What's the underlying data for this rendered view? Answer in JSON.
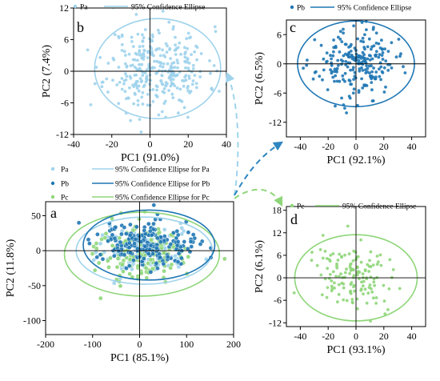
{
  "colors": {
    "pa": "#9fd3ec",
    "pb": "#1f77b4",
    "pc": "#8fd67a",
    "arrow": "#2e86c1",
    "arrow_c": "#8fd67a"
  },
  "chart_data": [
    {
      "panel": "b",
      "type": "scatter",
      "xlabel": "PC1 (91.0%)",
      "ylabel": "PC2 (7.4%)",
      "xlim": [
        -40,
        40
      ],
      "ylim": [
        -12,
        12
      ],
      "xticks": [
        -40,
        -20,
        0,
        20,
        40
      ],
      "yticks": [
        -12,
        -6,
        0,
        6,
        12
      ],
      "legend": [
        {
          "label": "Pa",
          "type": "marker"
        },
        {
          "label": "95% Confidence Ellipse",
          "type": "line"
        }
      ],
      "series": [
        {
          "name": "Pa",
          "color": "pa",
          "n": 330,
          "sx": 13,
          "sy": 4,
          "seed": 11
        }
      ],
      "ellipse": {
        "cx": 4,
        "cy": 0.5,
        "rx": 33,
        "ry": 9.5,
        "color": "pa"
      }
    },
    {
      "panel": "c",
      "type": "scatter",
      "xlabel": "PC1 (92.1%)",
      "ylabel": "PC2 (6.5%)",
      "xlim": [
        -50,
        50
      ],
      "ylim": [
        -15,
        9
      ],
      "xticks": [
        -40,
        -20,
        0,
        20,
        40
      ],
      "yticks": [
        -12,
        -6,
        0,
        6
      ],
      "legend": [
        {
          "label": "Pb",
          "type": "marker"
        },
        {
          "label": "95% Confidence Ellipse",
          "type": "line"
        }
      ],
      "series": [
        {
          "name": "Pb",
          "color": "pb",
          "n": 230,
          "sx": 14,
          "sy": 3.4,
          "seed": 23
        }
      ],
      "ellipse": {
        "cx": 0,
        "cy": 0,
        "rx": 42,
        "ry": 8.8,
        "color": "pb"
      }
    },
    {
      "panel": "a",
      "type": "scatter",
      "xlabel": "PC1 (85.1%)",
      "ylabel": "PC2 (11.8%)",
      "xlim": [
        -200,
        200
      ],
      "ylim": [
        -120,
        70
      ],
      "xticks": [
        -200,
        -100,
        0,
        100,
        200
      ],
      "yticks": [
        -100,
        -50,
        0,
        50
      ],
      "legend": [
        {
          "label": "Pa",
          "type": "marker",
          "color": "pa"
        },
        {
          "label": "95% Confidence Ellipse for Pa",
          "type": "line",
          "color": "pa"
        },
        {
          "label": "Pb",
          "type": "marker",
          "color": "pb"
        },
        {
          "label": "95% Confidence Ellipse for Pb",
          "type": "line",
          "color": "pb"
        },
        {
          "label": "Pc",
          "type": "marker",
          "color": "pc"
        },
        {
          "label": "95% Confidence Ellipse for Pc",
          "type": "line",
          "color": "pc"
        }
      ],
      "series": [
        {
          "name": "Pa",
          "color": "pa",
          "n": 180,
          "sx": 48,
          "sy": 16,
          "seed": 31
        },
        {
          "name": "Pc",
          "color": "pc",
          "n": 150,
          "sx": 55,
          "sy": 20,
          "seed": 47
        },
        {
          "name": "Pb",
          "color": "pb",
          "n": 200,
          "sx": 52,
          "sy": 15,
          "seed": 59
        }
      ],
      "ellipses": [
        {
          "cx": 10,
          "cy": 0,
          "rx": 145,
          "ry": 48,
          "color": "pa"
        },
        {
          "cx": 5,
          "cy": -5,
          "rx": 165,
          "ry": 60,
          "color": "pc"
        },
        {
          "cx": 20,
          "cy": 8,
          "rx": 140,
          "ry": 50,
          "color": "pb"
        }
      ]
    },
    {
      "panel": "d",
      "type": "scatter",
      "xlabel": "PC1 (93.1%)",
      "ylabel": "PC2 (6.1%)",
      "xlim": [
        -50,
        50
      ],
      "ylim": [
        -13,
        19
      ],
      "xticks": [
        -40,
        -20,
        0,
        20,
        40
      ],
      "yticks": [
        -12,
        -6,
        0,
        6,
        12,
        18
      ],
      "legend": [
        {
          "label": "Pc",
          "type": "marker"
        },
        {
          "label": "95% Confidence Ellipse",
          "type": "line"
        }
      ],
      "series": [
        {
          "name": "Pc",
          "color": "pc",
          "n": 140,
          "sx": 15,
          "sy": 4.5,
          "seed": 73
        }
      ],
      "ellipse": {
        "cx": 0,
        "cy": 0,
        "rx": 44,
        "ry": 11.5,
        "color": "pc"
      }
    }
  ]
}
